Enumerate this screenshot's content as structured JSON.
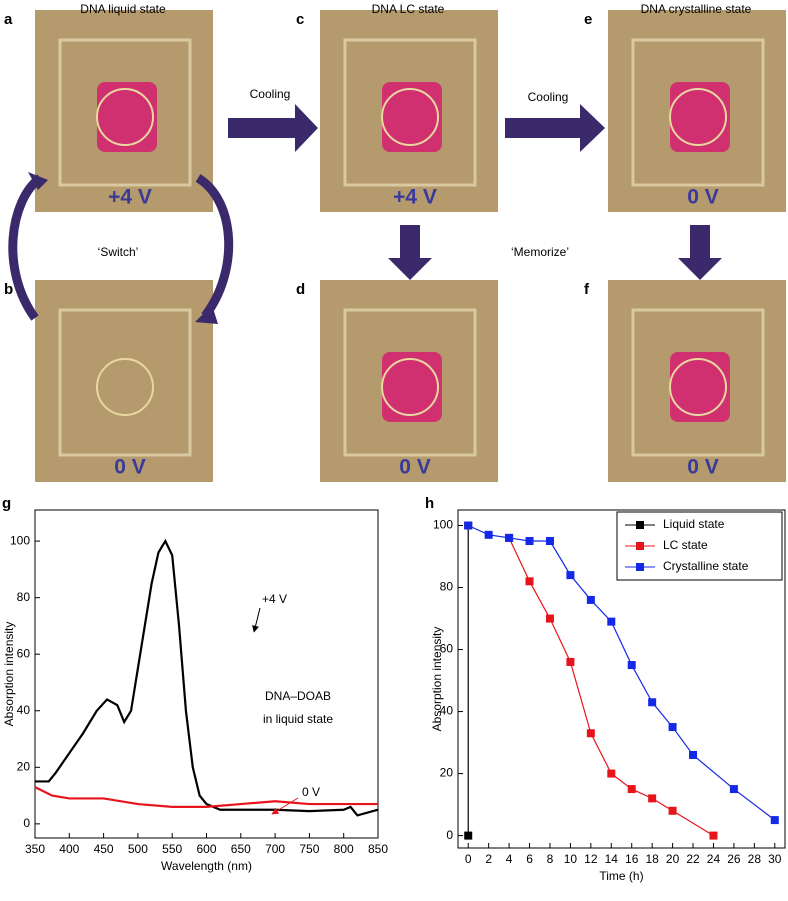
{
  "panels": [
    {
      "letter": "a",
      "title": "DNA liquid state",
      "voltage": "+4 V"
    },
    {
      "letter": "b",
      "voltage": "0 V"
    },
    {
      "letter": "c",
      "title": "DNA LC state",
      "voltage": "+4 V"
    },
    {
      "letter": "d",
      "voltage": "0 V"
    },
    {
      "letter": "e",
      "title": "DNA crystalline state",
      "voltage": "0 V"
    },
    {
      "letter": "f",
      "voltage": "0 V"
    }
  ],
  "labels": {
    "cooling_1": "Cooling",
    "cooling_2": "Cooling",
    "switch": "‘Switch’",
    "memorize": "‘Memorize’"
  },
  "chart_data": [
    {
      "type": "line",
      "panel": "g",
      "x_label": "Wavelength (nm)",
      "y_label": "Absorption intensity",
      "annotations": [
        "+4 V",
        "0 V",
        "DNA–DOAB",
        "in liquid state"
      ],
      "xlim": [
        350,
        850
      ],
      "xticks": [
        350,
        400,
        450,
        500,
        550,
        600,
        650,
        700,
        750,
        800,
        850
      ],
      "ylim": [
        -5,
        111
      ],
      "yticks": [
        0,
        20,
        40,
        60,
        80,
        100
      ],
      "series": [
        {
          "color": "#000000",
          "x": [
            350,
            370,
            380,
            400,
            420,
            440,
            455,
            470,
            480,
            490,
            500,
            510,
            520,
            530,
            540,
            550,
            560,
            570,
            580,
            590,
            600,
            620,
            650,
            700,
            750,
            800,
            810,
            820,
            850
          ],
          "values": [
            15,
            15,
            18,
            25,
            32,
            40,
            44,
            42,
            36,
            40,
            55,
            70,
            85,
            96,
            100,
            95,
            70,
            40,
            20,
            10,
            7,
            5,
            5,
            5,
            4.5,
            5,
            6,
            3,
            5
          ]
        },
        {
          "color": "#e8141c",
          "x": [
            350,
            375,
            400,
            450,
            500,
            550,
            600,
            650,
            700,
            750,
            800,
            850
          ],
          "values": [
            13,
            10,
            9,
            9,
            7,
            6,
            6,
            7,
            8,
            7,
            7,
            7
          ]
        }
      ]
    },
    {
      "type": "line",
      "panel": "h",
      "x_label": "Time (h)",
      "y_label": "Absorption intensity",
      "markers": true,
      "legend": "upper right",
      "xlim": [
        -1,
        31
      ],
      "xticks": [
        0,
        2,
        4,
        6,
        8,
        10,
        12,
        14,
        16,
        18,
        20,
        22,
        24,
        26,
        28,
        30
      ],
      "ylim": [
        -4,
        105
      ],
      "yticks": [
        0,
        20,
        40,
        60,
        80,
        100
      ],
      "series": [
        {
          "name": "Liquid state",
          "color": "#000000",
          "x": [
            0,
            0
          ],
          "values": [
            100,
            0
          ]
        },
        {
          "name": "LC state",
          "color": "#e8141c",
          "x": [
            4,
            6,
            8,
            10,
            12,
            14,
            16,
            18,
            20,
            24
          ],
          "values": [
            96,
            82,
            70,
            56,
            33,
            20,
            15,
            12,
            8,
            0
          ]
        },
        {
          "name": "Crystalline state",
          "color": "#1428e8",
          "x": [
            0,
            2,
            4,
            6,
            8,
            10,
            12,
            14,
            16,
            18,
            20,
            22,
            26,
            30
          ],
          "values": [
            100,
            97,
            96,
            95,
            95,
            84,
            76,
            69,
            55,
            43,
            35,
            26,
            15,
            5
          ]
        }
      ]
    }
  ]
}
